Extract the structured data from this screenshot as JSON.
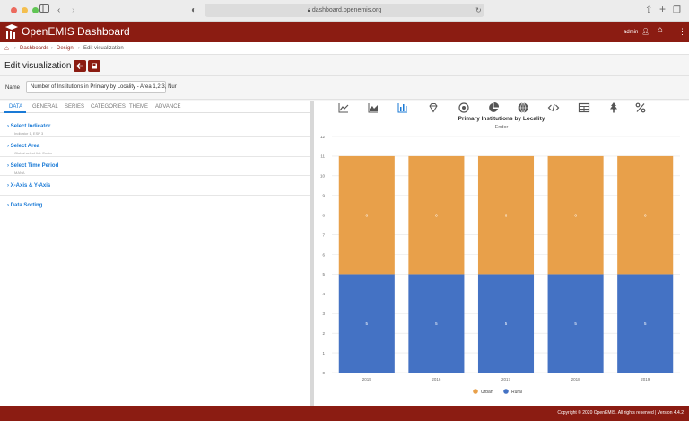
{
  "browser": {
    "url": "dashboard.openemis.org",
    "traffic_colors": [
      "#ec6a5e",
      "#f4bf4f",
      "#61c554"
    ]
  },
  "header": {
    "app_title": "OpenEMIS Dashboard",
    "user": "admin",
    "brand_color": "#8b1c12"
  },
  "breadcrumb": {
    "items": [
      "Dashboards",
      "Design",
      "Edit visualization"
    ]
  },
  "page": {
    "title": "Edit visualization",
    "name_label": "Name",
    "name_value": "Number of Institutions in Primary by Locality - Area 1,2,3, Nur"
  },
  "tabs": [
    "DATA",
    "GENERAL",
    "SERIES",
    "CATEGORIES",
    "THEME",
    "ADVANCE"
  ],
  "accordion": [
    {
      "title": "Select Indicator",
      "sub": "Indicator 1, ESP 3"
    },
    {
      "title": "Select Area",
      "sub": "Global select list: Endor"
    },
    {
      "title": "Select Time Period",
      "sub": "MANA"
    },
    {
      "title": "X-Axis & Y-Axis",
      "sub": ""
    },
    {
      "title": "Data Sorting",
      "sub": ""
    }
  ],
  "toolbar_icons": [
    "line-chart-icon",
    "area-chart-icon",
    "bar-chart-icon",
    "diamond-icon",
    "target-icon",
    "pie-chart-icon",
    "globe-icon",
    "code-icon",
    "table-icon",
    "tree-icon",
    "percent-icon"
  ],
  "chart_data": {
    "type": "bar",
    "stacked": true,
    "title": "Primary Institutions by Locality",
    "subtitle": "Endor",
    "categories": [
      "2015",
      "2016",
      "2017",
      "2018",
      "2019"
    ],
    "series": [
      {
        "name": "Rural",
        "values": [
          5,
          5,
          5,
          5,
          5
        ],
        "color": "#4472c4"
      },
      {
        "name": "Urban",
        "values": [
          6,
          6,
          6,
          6,
          6
        ],
        "color": "#e8a04a"
      }
    ],
    "ylim": [
      0,
      12
    ],
    "yticks": [
      0,
      1,
      2,
      3,
      4,
      5,
      6,
      7,
      8,
      9,
      10,
      11,
      12
    ],
    "legend_order": [
      "Urban",
      "Rural"
    ],
    "legend_position": "bottom",
    "grid": true
  },
  "footer": {
    "text": "Copyright © 2020 OpenEMIS. All rights reserved | Version 4.4.2"
  }
}
